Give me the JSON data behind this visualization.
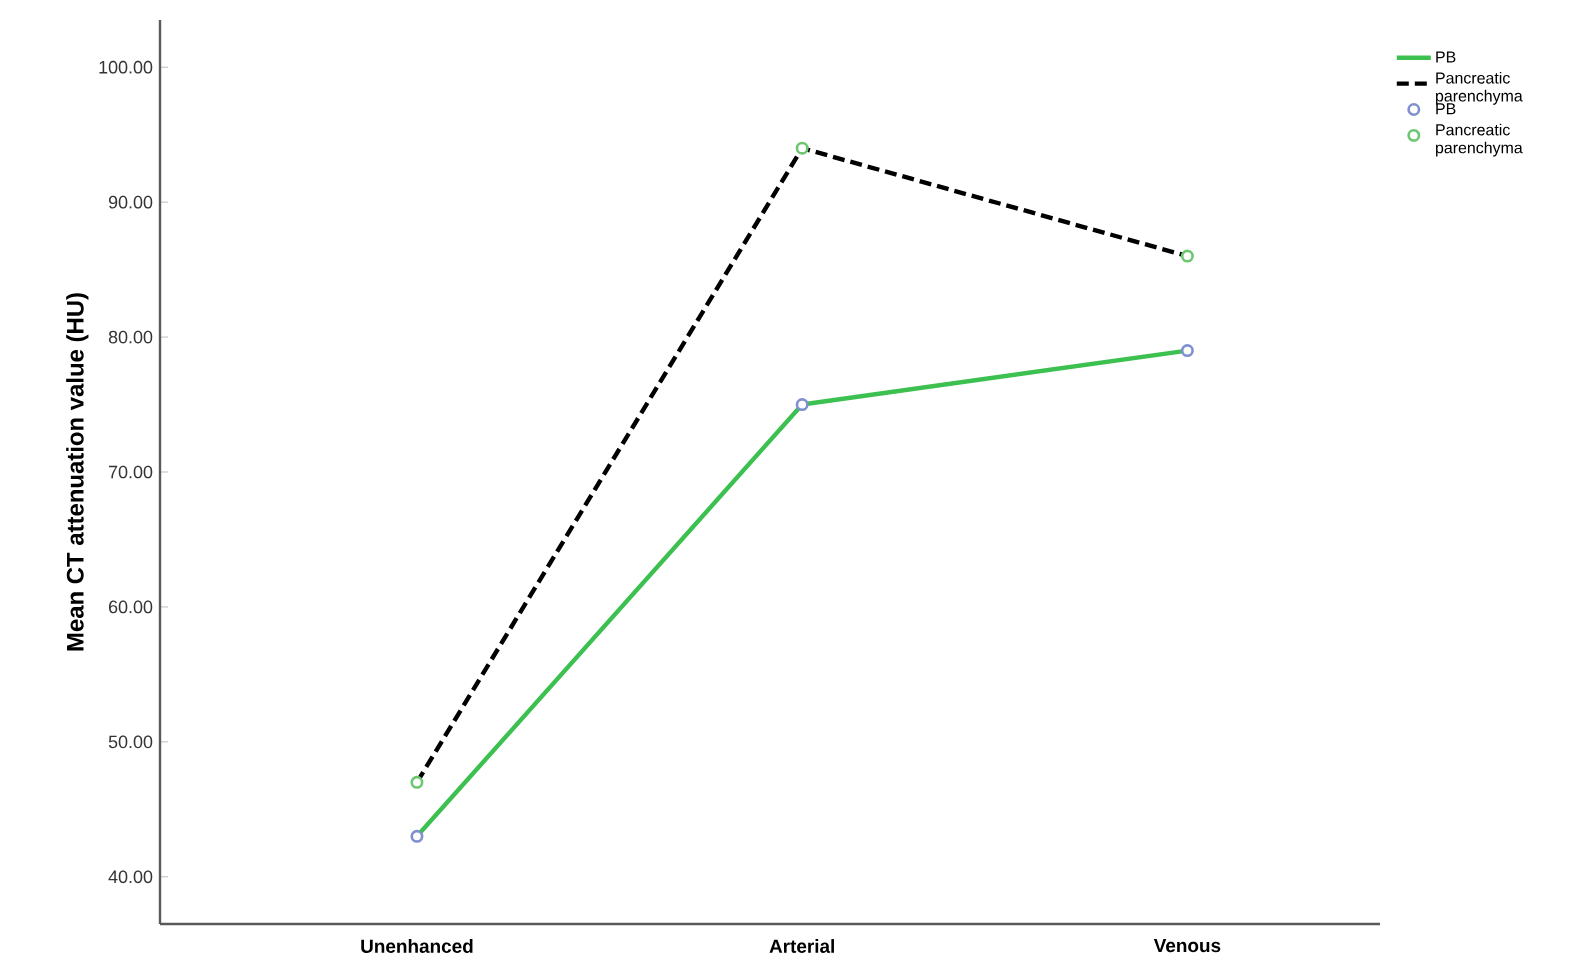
{
  "chart_data": {
    "type": "line",
    "ylabel": "Mean CT attenuation value (HU)",
    "categories": [
      "Unenhanced",
      "Arterial",
      "Venous"
    ],
    "ylim": [
      36.5,
      103.5
    ],
    "yticks": [
      {
        "value": 40,
        "label": "40.00"
      },
      {
        "value": 50,
        "label": "50.00"
      },
      {
        "value": 60,
        "label": "60.00"
      },
      {
        "value": 70,
        "label": "70.00"
      },
      {
        "value": 80,
        "label": "80.00"
      },
      {
        "value": 90,
        "label": "90.00"
      },
      {
        "value": 100,
        "label": "100.00"
      }
    ],
    "legend": "top right",
    "series": [
      {
        "name": "PB",
        "type": "line",
        "color": "#3cc04f",
        "line_style": "solid",
        "values": [
          43,
          75,
          79
        ]
      },
      {
        "name": "Pancreatic parenchyma",
        "type": "line",
        "color": "#000000",
        "line_style": "dashed",
        "values": [
          47,
          94,
          86
        ]
      },
      {
        "name": "PB",
        "type": "scatter",
        "color": "#7f8fcf",
        "marker": "circle",
        "x": [
          "Unenhanced",
          "Arterial",
          "Venous"
        ],
        "values": [
          43,
          75,
          79
        ]
      },
      {
        "name": "Pancreatic parenchyma",
        "type": "scatter",
        "color": "#6cc870",
        "marker": "circle",
        "x": [
          "Unenhanced",
          "Arterial",
          "Venous"
        ],
        "values": [
          47,
          94,
          86
        ]
      }
    ]
  }
}
